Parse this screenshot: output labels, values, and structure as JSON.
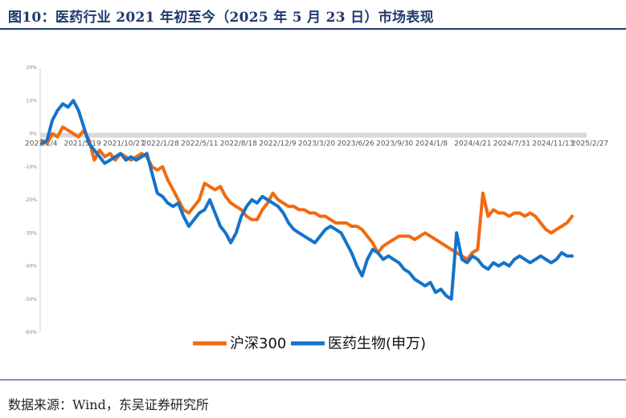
{
  "title": "图10：医药行业 2021 年初至今（2025 年 5 月 23 日）市场表现",
  "source": "数据来源：Wind，东吴证券研究所",
  "chart_data": {
    "type": "line",
    "ylim": [
      -60,
      20
    ],
    "yticks": [
      20,
      10,
      0,
      -10,
      -20,
      -30,
      -40,
      -50,
      -60
    ],
    "ytick_labels": [
      "20%",
      "10%",
      "0%",
      "-10%",
      "-20%",
      "-30%",
      "-40%",
      "-50%",
      "-60%"
    ],
    "xtick_labels": [
      "2021/1/4",
      "2021/5/19",
      "2021/10/27",
      "2022/1/28",
      "2022/5/11",
      "2022/8/18",
      "2022/12/9",
      "2023/3/20",
      "2023/6/26",
      "2023/9/30",
      "2024/1/8",
      "2024/4/21",
      "2024/7/31",
      "2024/11/13",
      "2025/2/27"
    ],
    "legend_position": "bottom",
    "grid": false,
    "series": [
      {
        "name": "沪深300",
        "color": "#f26a11",
        "points": [
          [
            0,
            -2
          ],
          [
            2,
            -3
          ],
          [
            4,
            0
          ],
          [
            6,
            -1
          ],
          [
            8,
            2
          ],
          [
            10,
            1
          ],
          [
            12,
            0
          ],
          [
            14,
            -1
          ],
          [
            16,
            1
          ],
          [
            18,
            -2
          ],
          [
            20,
            -8
          ],
          [
            22,
            -5
          ],
          [
            24,
            -7
          ],
          [
            26,
            -6
          ],
          [
            28,
            -8
          ],
          [
            30,
            -6
          ],
          [
            32,
            -7
          ],
          [
            34,
            -8
          ],
          [
            36,
            -7
          ],
          [
            38,
            -6
          ],
          [
            40,
            -7
          ],
          [
            42,
            -10
          ],
          [
            44,
            -11
          ],
          [
            46,
            -10
          ],
          [
            48,
            -14
          ],
          [
            50,
            -17
          ],
          [
            52,
            -20
          ],
          [
            54,
            -23
          ],
          [
            56,
            -24
          ],
          [
            58,
            -22
          ],
          [
            60,
            -20
          ],
          [
            62,
            -15
          ],
          [
            64,
            -16
          ],
          [
            66,
            -17
          ],
          [
            68,
            -16
          ],
          [
            70,
            -19
          ],
          [
            72,
            -21
          ],
          [
            74,
            -22
          ],
          [
            76,
            -23
          ],
          [
            78,
            -25
          ],
          [
            80,
            -26
          ],
          [
            82,
            -26
          ],
          [
            84,
            -23
          ],
          [
            86,
            -21
          ],
          [
            88,
            -18
          ],
          [
            90,
            -20
          ],
          [
            92,
            -21
          ],
          [
            94,
            -22
          ],
          [
            96,
            -22
          ],
          [
            98,
            -23
          ],
          [
            100,
            -23
          ],
          [
            102,
            -24
          ],
          [
            104,
            -24
          ],
          [
            106,
            -25
          ],
          [
            108,
            -25
          ],
          [
            110,
            -26
          ],
          [
            112,
            -27
          ],
          [
            114,
            -27
          ],
          [
            116,
            -27
          ],
          [
            118,
            -28
          ],
          [
            120,
            -28
          ],
          [
            122,
            -29
          ],
          [
            124,
            -31
          ],
          [
            126,
            -33
          ],
          [
            128,
            -36
          ],
          [
            130,
            -34
          ],
          [
            132,
            -33
          ],
          [
            134,
            -32
          ],
          [
            136,
            -31
          ],
          [
            138,
            -31
          ],
          [
            140,
            -31
          ],
          [
            142,
            -32
          ],
          [
            144,
            -31
          ],
          [
            146,
            -30
          ],
          [
            148,
            -31
          ],
          [
            150,
            -32
          ],
          [
            152,
            -33
          ],
          [
            154,
            -34
          ],
          [
            156,
            -35
          ],
          [
            158,
            -36
          ],
          [
            160,
            -37
          ],
          [
            162,
            -38
          ],
          [
            164,
            -36
          ],
          [
            166,
            -35
          ],
          [
            168,
            -18
          ],
          [
            170,
            -25
          ],
          [
            172,
            -23
          ],
          [
            174,
            -24
          ],
          [
            176,
            -24
          ],
          [
            178,
            -25
          ],
          [
            180,
            -24
          ],
          [
            182,
            -24
          ],
          [
            184,
            -25
          ],
          [
            186,
            -24
          ],
          [
            188,
            -25
          ],
          [
            190,
            -27
          ],
          [
            192,
            -29
          ],
          [
            194,
            -30
          ],
          [
            196,
            -29
          ],
          [
            198,
            -28
          ],
          [
            200,
            -27
          ],
          [
            202,
            -25
          ]
        ]
      },
      {
        "name": "医药生物(申万)",
        "color": "#1573c9",
        "points": [
          [
            0,
            -3
          ],
          [
            2,
            -2
          ],
          [
            4,
            4
          ],
          [
            6,
            7
          ],
          [
            8,
            9
          ],
          [
            10,
            8
          ],
          [
            12,
            10
          ],
          [
            14,
            7
          ],
          [
            16,
            2
          ],
          [
            18,
            -3
          ],
          [
            20,
            -5
          ],
          [
            22,
            -7
          ],
          [
            24,
            -9
          ],
          [
            26,
            -8
          ],
          [
            28,
            -7
          ],
          [
            30,
            -6
          ],
          [
            32,
            -8
          ],
          [
            34,
            -7
          ],
          [
            36,
            -8
          ],
          [
            38,
            -7
          ],
          [
            40,
            -6
          ],
          [
            42,
            -12
          ],
          [
            44,
            -18
          ],
          [
            46,
            -19
          ],
          [
            48,
            -21
          ],
          [
            50,
            -22
          ],
          [
            52,
            -21
          ],
          [
            54,
            -25
          ],
          [
            56,
            -28
          ],
          [
            58,
            -26
          ],
          [
            60,
            -24
          ],
          [
            62,
            -23
          ],
          [
            64,
            -20
          ],
          [
            66,
            -24
          ],
          [
            68,
            -28
          ],
          [
            70,
            -30
          ],
          [
            72,
            -33
          ],
          [
            74,
            -30
          ],
          [
            76,
            -25
          ],
          [
            78,
            -22
          ],
          [
            80,
            -20
          ],
          [
            82,
            -21
          ],
          [
            84,
            -19
          ],
          [
            86,
            -20
          ],
          [
            88,
            -21
          ],
          [
            90,
            -22
          ],
          [
            92,
            -24
          ],
          [
            94,
            -27
          ],
          [
            96,
            -29
          ],
          [
            98,
            -30
          ],
          [
            100,
            -31
          ],
          [
            102,
            -32
          ],
          [
            104,
            -33
          ],
          [
            106,
            -31
          ],
          [
            108,
            -29
          ],
          [
            110,
            -28
          ],
          [
            112,
            -29
          ],
          [
            114,
            -30
          ],
          [
            116,
            -33
          ],
          [
            118,
            -36
          ],
          [
            120,
            -40
          ],
          [
            122,
            -43
          ],
          [
            124,
            -38
          ],
          [
            126,
            -35
          ],
          [
            128,
            -36
          ],
          [
            130,
            -38
          ],
          [
            132,
            -37
          ],
          [
            134,
            -38
          ],
          [
            136,
            -39
          ],
          [
            138,
            -41
          ],
          [
            140,
            -42
          ],
          [
            142,
            -44
          ],
          [
            144,
            -45
          ],
          [
            146,
            -46
          ],
          [
            148,
            -45
          ],
          [
            150,
            -48
          ],
          [
            152,
            -47
          ],
          [
            154,
            -49
          ],
          [
            156,
            -50
          ],
          [
            158,
            -30
          ],
          [
            160,
            -38
          ],
          [
            162,
            -39
          ],
          [
            164,
            -37
          ],
          [
            166,
            -38
          ],
          [
            168,
            -40
          ],
          [
            170,
            -41
          ],
          [
            172,
            -39
          ],
          [
            174,
            -40
          ],
          [
            176,
            -39
          ],
          [
            178,
            -40
          ],
          [
            180,
            -38
          ],
          [
            182,
            -37
          ],
          [
            184,
            -38
          ],
          [
            186,
            -39
          ],
          [
            188,
            -38
          ],
          [
            190,
            -37
          ],
          [
            192,
            -38
          ],
          [
            194,
            -39
          ],
          [
            196,
            -38
          ],
          [
            198,
            -36
          ],
          [
            200,
            -37
          ],
          [
            202,
            -37
          ]
        ]
      }
    ]
  }
}
